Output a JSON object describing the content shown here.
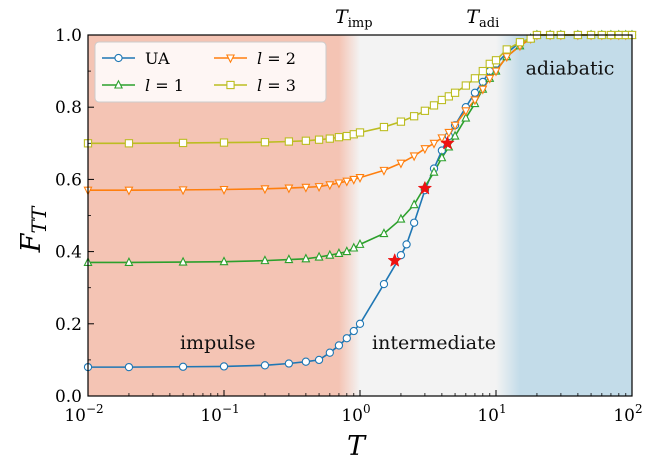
{
  "chart_data": {
    "type": "line",
    "x_scale": "log",
    "xlim": [
      0.01,
      100
    ],
    "ylim": [
      0.0,
      1.0
    ],
    "xlabel": "T",
    "ylabel": "F_TT",
    "x_ticks": [
      {
        "value": 0.01,
        "base": "10",
        "exp": "−2"
      },
      {
        "value": 0.1,
        "base": "10",
        "exp": "−1"
      },
      {
        "value": 1,
        "base": "10",
        "exp": "0"
      },
      {
        "value": 10,
        "base": "10",
        "exp": "1"
      },
      {
        "value": 100,
        "base": "10",
        "exp": "2"
      }
    ],
    "y_ticks": [
      "0.0",
      "0.2",
      "0.4",
      "0.6",
      "0.8",
      "1.0"
    ],
    "regions": [
      {
        "label": "impulse",
        "from": 0.01,
        "to": 0.7,
        "color": "#f4c4b4"
      },
      {
        "label": "intermediate",
        "from": 1.0,
        "to": 10,
        "color": "#f3f3f3"
      },
      {
        "label": "adiabatic",
        "from": 15,
        "to": 100,
        "color": "#c3dce9"
      }
    ],
    "top_annotations": [
      {
        "label": "T",
        "sub": "imp",
        "x": 0.9
      },
      {
        "label": "T",
        "sub": "adi",
        "x": 8.0
      }
    ],
    "legend_position": "upper-left",
    "series": [
      {
        "name": "UA",
        "color": "#1f77b4",
        "marker": "circle",
        "x": [
          0.01,
          0.02,
          0.05,
          0.1,
          0.2,
          0.3,
          0.4,
          0.5,
          0.6,
          0.7,
          0.8,
          0.9,
          1.0,
          1.5,
          2.0,
          2.2,
          2.5,
          3.0,
          3.5,
          4.0,
          4.5,
          5.0,
          6.0,
          7.0,
          8.0,
          9.0,
          10,
          12,
          15,
          18,
          20,
          25,
          30,
          40,
          50,
          60,
          70,
          80,
          90,
          100
        ],
        "y": [
          0.08,
          0.08,
          0.081,
          0.082,
          0.085,
          0.09,
          0.095,
          0.1,
          0.12,
          0.14,
          0.16,
          0.18,
          0.2,
          0.31,
          0.39,
          0.42,
          0.48,
          0.57,
          0.63,
          0.68,
          0.72,
          0.75,
          0.8,
          0.84,
          0.87,
          0.9,
          0.92,
          0.95,
          0.98,
          0.99,
          1.0,
          1.0,
          1.0,
          1.0,
          1.0,
          1.0,
          1.0,
          1.0,
          1.0,
          1.0
        ]
      },
      {
        "name": "l = 1",
        "color": "#2ca02c",
        "marker": "triangle-up",
        "x": [
          0.01,
          0.02,
          0.05,
          0.1,
          0.2,
          0.3,
          0.4,
          0.5,
          0.6,
          0.7,
          0.8,
          0.9,
          1.0,
          1.5,
          2.0,
          2.5,
          3.0,
          3.5,
          4.0,
          4.5,
          5.0,
          6.0,
          7.0,
          8.0,
          9.0,
          10,
          12,
          15,
          18,
          20,
          25,
          30,
          40,
          50,
          60,
          70,
          80,
          90,
          100
        ],
        "y": [
          0.37,
          0.37,
          0.371,
          0.372,
          0.375,
          0.378,
          0.38,
          0.385,
          0.39,
          0.395,
          0.4,
          0.41,
          0.42,
          0.45,
          0.49,
          0.53,
          0.58,
          0.62,
          0.66,
          0.69,
          0.72,
          0.77,
          0.81,
          0.85,
          0.88,
          0.9,
          0.94,
          0.97,
          0.99,
          1.0,
          1.0,
          1.0,
          1.0,
          1.0,
          1.0,
          1.0,
          1.0,
          1.0,
          1.0
        ]
      },
      {
        "name": "l = 2",
        "color": "#ff7f0e",
        "marker": "triangle-down",
        "x": [
          0.01,
          0.02,
          0.05,
          0.1,
          0.2,
          0.3,
          0.4,
          0.5,
          0.6,
          0.7,
          0.8,
          0.9,
          1.0,
          1.5,
          2.0,
          2.5,
          3.0,
          3.5,
          4.0,
          4.5,
          5.0,
          6.0,
          7.0,
          8.0,
          9.0,
          10,
          12,
          15,
          18,
          20,
          25,
          30,
          40,
          50,
          60,
          70,
          80,
          90,
          100
        ],
        "y": [
          0.57,
          0.57,
          0.571,
          0.572,
          0.574,
          0.576,
          0.578,
          0.58,
          0.585,
          0.59,
          0.595,
          0.6,
          0.605,
          0.625,
          0.645,
          0.665,
          0.685,
          0.7,
          0.715,
          0.73,
          0.75,
          0.79,
          0.82,
          0.85,
          0.88,
          0.9,
          0.94,
          0.97,
          0.99,
          1.0,
          1.0,
          1.0,
          1.0,
          1.0,
          1.0,
          1.0,
          1.0,
          1.0,
          1.0
        ]
      },
      {
        "name": "l = 3",
        "color": "#bcbd22",
        "marker": "square",
        "x": [
          0.01,
          0.02,
          0.05,
          0.1,
          0.2,
          0.3,
          0.4,
          0.5,
          0.6,
          0.7,
          0.8,
          0.9,
          1.0,
          1.5,
          2.0,
          2.5,
          3.0,
          3.5,
          4.0,
          4.5,
          5.0,
          6.0,
          7.0,
          8.0,
          9.0,
          10,
          12,
          15,
          18,
          20,
          25,
          30,
          40,
          50,
          60,
          70,
          80,
          90,
          100
        ],
        "y": [
          0.7,
          0.7,
          0.701,
          0.702,
          0.703,
          0.705,
          0.707,
          0.71,
          0.713,
          0.717,
          0.72,
          0.725,
          0.73,
          0.745,
          0.76,
          0.775,
          0.79,
          0.805,
          0.82,
          0.83,
          0.84,
          0.86,
          0.88,
          0.9,
          0.92,
          0.93,
          0.96,
          0.98,
          0.99,
          1.0,
          1.0,
          1.0,
          1.0,
          1.0,
          1.0,
          1.0,
          1.0,
          1.0,
          1.0
        ]
      }
    ],
    "highlight_points": {
      "color": "#ee1111",
      "marker": "star",
      "x": [
        1.8,
        3.0,
        4.4
      ],
      "y": [
        0.375,
        0.575,
        0.7
      ]
    }
  }
}
